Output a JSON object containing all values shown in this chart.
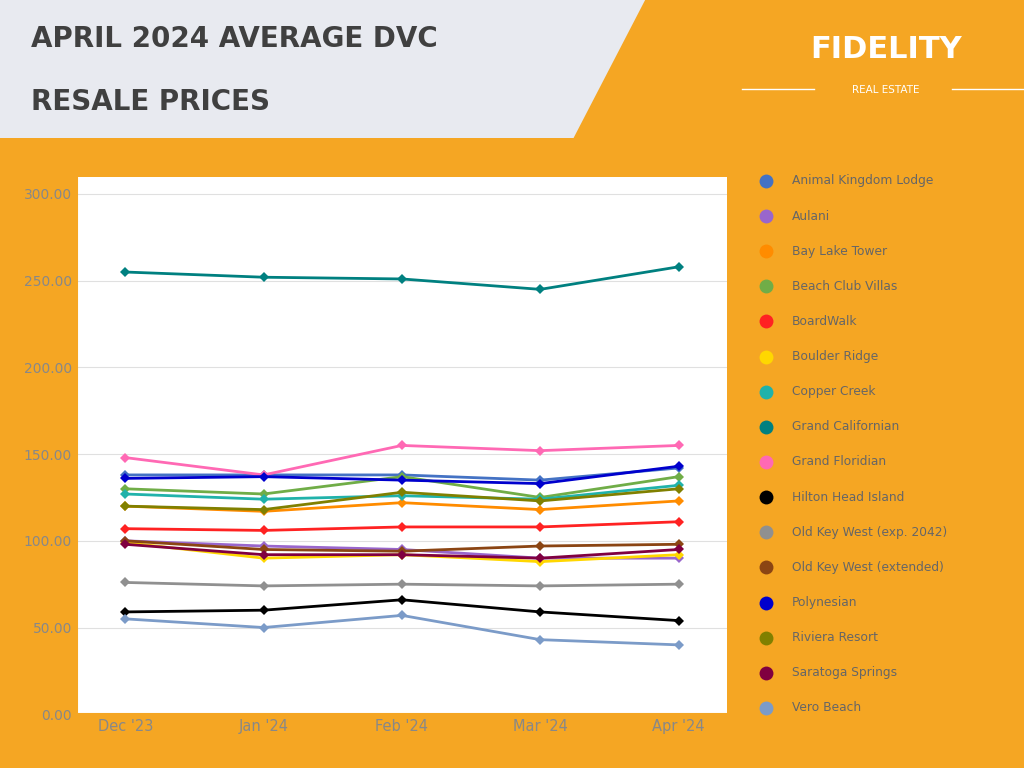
{
  "title_line1": "APRIL 2024 AVERAGE DVC",
  "title_line2": "RESALE PRICES",
  "months": [
    "Dec '23",
    "Jan '24",
    "Feb '24",
    "Mar '24",
    "Apr '24"
  ],
  "series": [
    {
      "name": "Animal Kingdom Lodge",
      "color": "#4472C4",
      "values": [
        138,
        138,
        138,
        135,
        142
      ]
    },
    {
      "name": "Aulani",
      "color": "#9966CC",
      "values": [
        100,
        97,
        95,
        90,
        90
      ]
    },
    {
      "name": "Bay Lake Tower",
      "color": "#FF8C00",
      "values": [
        120,
        117,
        122,
        118,
        123
      ]
    },
    {
      "name": "Beach Club Villas",
      "color": "#70AD47",
      "values": [
        130,
        127,
        137,
        125,
        137
      ]
    },
    {
      "name": "BoardWalk",
      "color": "#FF2222",
      "values": [
        107,
        106,
        108,
        108,
        111
      ]
    },
    {
      "name": "Boulder Ridge",
      "color": "#FFD700",
      "values": [
        99,
        90,
        92,
        88,
        92
      ]
    },
    {
      "name": "Copper Creek",
      "color": "#20B2AA",
      "values": [
        127,
        124,
        126,
        124,
        132
      ]
    },
    {
      "name": "Grand Californian",
      "color": "#008080",
      "values": [
        255,
        252,
        251,
        245,
        258
      ]
    },
    {
      "name": "Grand Floridian",
      "color": "#FF69B4",
      "values": [
        148,
        138,
        155,
        152,
        155
      ]
    },
    {
      "name": "Hilton Head Island",
      "color": "#000000",
      "values": [
        59,
        60,
        66,
        59,
        54
      ]
    },
    {
      "name": "Old Key West (exp. 2042)",
      "color": "#909090",
      "values": [
        76,
        74,
        75,
        74,
        75
      ]
    },
    {
      "name": "Old Key West (extended)",
      "color": "#8B4513",
      "values": [
        100,
        95,
        94,
        97,
        98
      ]
    },
    {
      "name": "Polynesian",
      "color": "#0000CD",
      "values": [
        136,
        137,
        135,
        133,
        143
      ]
    },
    {
      "name": "Riviera Resort",
      "color": "#808000",
      "values": [
        120,
        118,
        128,
        123,
        130
      ]
    },
    {
      "name": "Saratoga Springs",
      "color": "#800040",
      "values": [
        98,
        92,
        92,
        90,
        95
      ]
    },
    {
      "name": "Vero Beach",
      "color": "#7B9BC8",
      "values": [
        55,
        50,
        57,
        43,
        40
      ]
    }
  ],
  "ylim": [
    0,
    310
  ],
  "yticks": [
    0,
    50,
    100,
    150,
    200,
    250,
    300
  ],
  "bg_color": "#E8EAF0",
  "chart_bg": "#FFFFFF",
  "header_orange": "#F5A623",
  "axis_orange": "#F5A623",
  "title_color": "#404040",
  "legend_text_color": "#666666",
  "grid_color": "#E0E0E0",
  "tick_color": "#888888"
}
